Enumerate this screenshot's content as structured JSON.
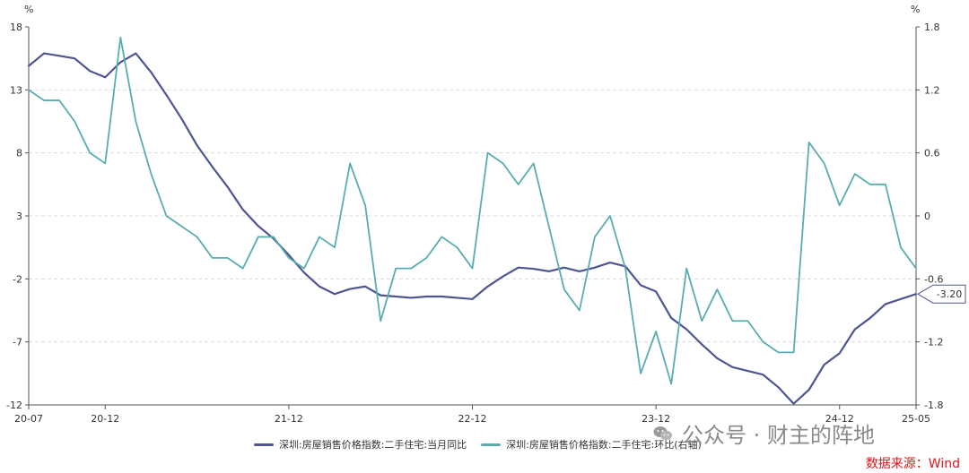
{
  "chart_data": {
    "type": "line",
    "x": [
      "20-07",
      "20-08",
      "20-09",
      "20-10",
      "20-11",
      "20-12",
      "21-01",
      "21-02",
      "21-03",
      "21-04",
      "21-05",
      "21-06",
      "21-07",
      "21-08",
      "21-09",
      "21-10",
      "21-11",
      "21-12",
      "22-01",
      "22-02",
      "22-03",
      "22-04",
      "22-05",
      "22-06",
      "22-07",
      "22-08",
      "22-09",
      "22-10",
      "22-11",
      "22-12",
      "23-01",
      "23-02",
      "23-03",
      "23-04",
      "23-05",
      "23-06",
      "23-07",
      "23-08",
      "23-09",
      "23-10",
      "23-11",
      "23-12",
      "24-01",
      "24-02",
      "24-03",
      "24-04",
      "24-05",
      "24-06",
      "24-07",
      "24-08",
      "24-09",
      "24-10",
      "24-11",
      "24-12",
      "25-01",
      "25-02",
      "25-03",
      "25-04",
      "25-05"
    ],
    "x_tick_labels": [
      "20-07",
      "20-12",
      "21-12",
      "22-12",
      "23-12",
      "24-12",
      "25-05"
    ],
    "y_left": {
      "unit": "%",
      "range": [
        -12,
        18
      ],
      "ticks": [
        "18",
        "13",
        "8",
        "3",
        "-2",
        "-7",
        "-12"
      ]
    },
    "y_right": {
      "unit": "%",
      "range": [
        -1.8,
        1.8
      ],
      "ticks": [
        "1.8",
        "1.2",
        "0.6",
        "0",
        "-0.6",
        "-1.2",
        "-1.8"
      ]
    },
    "grid": "horizontal dashed",
    "legend_position": "bottom",
    "series": [
      {
        "name": "深圳:房屋销售价格指数:二手住宅:当月同比",
        "axis": "left",
        "color": "#4e5591",
        "values": [
          14.9,
          15.9,
          15.7,
          15.5,
          14.5,
          14.0,
          15.2,
          15.9,
          14.4,
          12.6,
          10.7,
          8.6,
          6.9,
          5.3,
          3.5,
          2.2,
          1.2,
          -0.1,
          -1.5,
          -2.6,
          -3.2,
          -2.8,
          -2.6,
          -3.3,
          -3.4,
          -3.5,
          -3.4,
          -3.4,
          -3.5,
          -3.6,
          -2.6,
          -1.8,
          -1.1,
          -1.2,
          -1.4,
          -1.1,
          -1.4,
          -1.1,
          -0.7,
          -1.0,
          -2.5,
          -3.0,
          -5.1,
          -6.0,
          -7.2,
          -8.3,
          -9.0,
          -9.3,
          -9.6,
          -10.6,
          -11.9,
          -10.8,
          -8.8,
          -7.9,
          -6.0,
          -5.1,
          -4.0,
          -3.6,
          -3.2
        ]
      },
      {
        "name": "深圳:房屋销售价格指数:二手住宅:环比(右轴)",
        "axis": "right",
        "color": "#5aadaf",
        "values": [
          1.2,
          1.1,
          1.1,
          0.9,
          0.6,
          0.5,
          1.7,
          0.9,
          0.4,
          0.0,
          -0.1,
          -0.2,
          -0.4,
          -0.4,
          -0.5,
          -0.2,
          -0.2,
          -0.4,
          -0.5,
          -0.2,
          -0.3,
          0.5,
          0.1,
          -1.0,
          -0.5,
          -0.5,
          -0.4,
          -0.2,
          -0.3,
          -0.5,
          0.6,
          0.5,
          0.3,
          0.5,
          -0.1,
          -0.7,
          -0.9,
          -0.2,
          0.0,
          -0.5,
          -1.5,
          -1.1,
          -1.6,
          -0.5,
          -1.0,
          -0.7,
          -1.0,
          -1.0,
          -1.2,
          -1.3,
          -1.3,
          0.7,
          0.5,
          0.1,
          0.4,
          0.3,
          0.3,
          -0.3,
          -0.5
        ]
      }
    ],
    "end_label": "-3.20"
  },
  "watermark": "公众号 · 财主的阵地",
  "source": "数据来源：Wind"
}
